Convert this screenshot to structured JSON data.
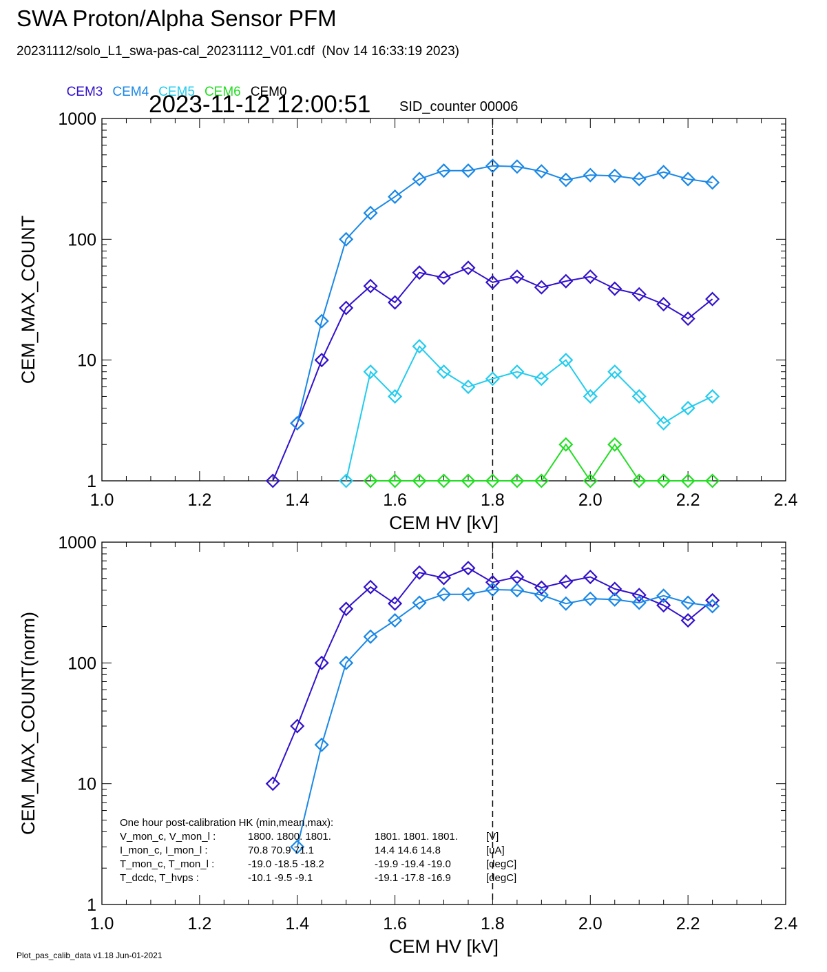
{
  "header": {
    "title": "SWA Proton/Alpha Sensor PFM",
    "subtitle": "20231112/solo_L1_swa-pas-cal_20231112_V01.cdf  (Nov 14 16:33:19 2023)",
    "timestamp": "2023-11-12 12:00:51",
    "sid": "SID_counter 00006"
  },
  "legend": [
    {
      "name": "CEM3",
      "color": "#3311cc"
    },
    {
      "name": "CEM4",
      "color": "#1a88e6"
    },
    {
      "name": "CEM5",
      "color": "#22ccee"
    },
    {
      "name": "CEM6",
      "color": "#22dd22"
    },
    {
      "name": "CEM0",
      "color": "#000000"
    }
  ],
  "footer": "Plot_pas_calib_data v1.18 Jun-01-2021",
  "hk": {
    "heading": "One hour post-calibration HK (min,mean,max):",
    "rows": [
      [
        "V_mon_c, V_mon_l :",
        "1800.  1800.  1801.",
        "1801.  1801.  1801.",
        "[V]"
      ],
      [
        "I_mon_c,  I_mon_l :",
        "70.8   70.9   71.1",
        "14.4   14.6   14.8",
        "[uA]"
      ],
      [
        "T_mon_c, T_mon_l :",
        "-19.0  -18.5  -18.2",
        "-19.9  -19.4  -19.0",
        "[degC]"
      ],
      [
        "T_dcdc,    T_hvps :",
        "-10.1   -9.5   -9.1",
        "-19.1  -17.8  -16.9",
        "[degC]"
      ]
    ]
  },
  "chart_data": [
    {
      "type": "line",
      "xlabel": "CEM HV [kV]",
      "ylabel": "CEM_MAX_COUNT",
      "xlim": [
        1.0,
        2.4
      ],
      "ylim": [
        1,
        1000
      ],
      "yscale": "log",
      "xticks": [
        "1.0",
        "1.2",
        "1.4",
        "1.6",
        "1.8",
        "2.0",
        "2.2",
        "2.4"
      ],
      "yticks": [
        "1",
        "10",
        "100",
        "1000"
      ],
      "vline": 1.8,
      "series": [
        {
          "name": "CEM3",
          "color": "#3311cc",
          "x": [
            1.35,
            1.4,
            1.45,
            1.5,
            1.55,
            1.6,
            1.65,
            1.7,
            1.75,
            1.8,
            1.85,
            1.9,
            1.95,
            2.0,
            2.05,
            2.1,
            2.15,
            2.2,
            2.25
          ],
          "values": [
            1,
            3,
            10,
            27,
            41,
            30,
            53,
            48,
            58,
            44,
            49,
            40,
            45,
            49,
            39,
            35,
            29,
            22,
            32
          ]
        },
        {
          "name": "CEM4",
          "color": "#1a88e6",
          "x": [
            1.4,
            1.45,
            1.5,
            1.55,
            1.6,
            1.65,
            1.7,
            1.75,
            1.8,
            1.85,
            1.9,
            1.95,
            2.0,
            2.05,
            2.1,
            2.15,
            2.2,
            2.25
          ],
          "values": [
            3,
            21,
            100,
            165,
            225,
            315,
            370,
            370,
            405,
            400,
            365,
            310,
            340,
            335,
            315,
            360,
            315,
            295
          ]
        },
        {
          "name": "CEM5",
          "color": "#22ccee",
          "x": [
            1.5,
            1.55,
            1.6,
            1.65,
            1.7,
            1.75,
            1.8,
            1.85,
            1.9,
            1.95,
            2.0,
            2.05,
            2.1,
            2.15,
            2.2,
            2.25
          ],
          "values": [
            1,
            8,
            5,
            13,
            8,
            6,
            7,
            8,
            7,
            10,
            5,
            8,
            5,
            3,
            4,
            5
          ]
        },
        {
          "name": "CEM6",
          "color": "#22dd22",
          "x": [
            1.55,
            1.6,
            1.65,
            1.7,
            1.75,
            1.8,
            1.85,
            1.9,
            1.95,
            2.0,
            2.05,
            2.1,
            2.15,
            2.2,
            2.25
          ],
          "values": [
            1,
            1,
            1,
            1,
            1,
            1,
            1,
            1,
            2,
            1,
            2,
            1,
            1,
            1,
            1
          ]
        }
      ]
    },
    {
      "type": "line",
      "xlabel": "CEM HV [kV]",
      "ylabel": "CEM_MAX_COUNT(norm)",
      "xlim": [
        1.0,
        2.4
      ],
      "ylim": [
        1,
        1000
      ],
      "yscale": "log",
      "xticks": [
        "1.0",
        "1.2",
        "1.4",
        "1.6",
        "1.8",
        "2.0",
        "2.2",
        "2.4"
      ],
      "yticks": [
        "1",
        "10",
        "100",
        "1000"
      ],
      "vline": 1.8,
      "series": [
        {
          "name": "CEM3",
          "color": "#3311cc",
          "x": [
            1.35,
            1.4,
            1.45,
            1.5,
            1.55,
            1.6,
            1.65,
            1.7,
            1.75,
            1.8,
            1.85,
            1.9,
            1.95,
            2.0,
            2.05,
            2.1,
            2.15,
            2.2,
            2.25
          ],
          "values": [
            10,
            30,
            100,
            280,
            425,
            310,
            560,
            505,
            610,
            465,
            515,
            420,
            470,
            515,
            410,
            365,
            300,
            225,
            330
          ]
        },
        {
          "name": "CEM4",
          "color": "#1a88e6",
          "x": [
            1.4,
            1.45,
            1.5,
            1.55,
            1.6,
            1.65,
            1.7,
            1.75,
            1.8,
            1.85,
            1.9,
            1.95,
            2.0,
            2.05,
            2.1,
            2.15,
            2.2,
            2.25
          ],
          "values": [
            3,
            21,
            100,
            165,
            225,
            315,
            370,
            370,
            405,
            400,
            365,
            310,
            340,
            335,
            315,
            360,
            315,
            295
          ]
        }
      ]
    }
  ]
}
